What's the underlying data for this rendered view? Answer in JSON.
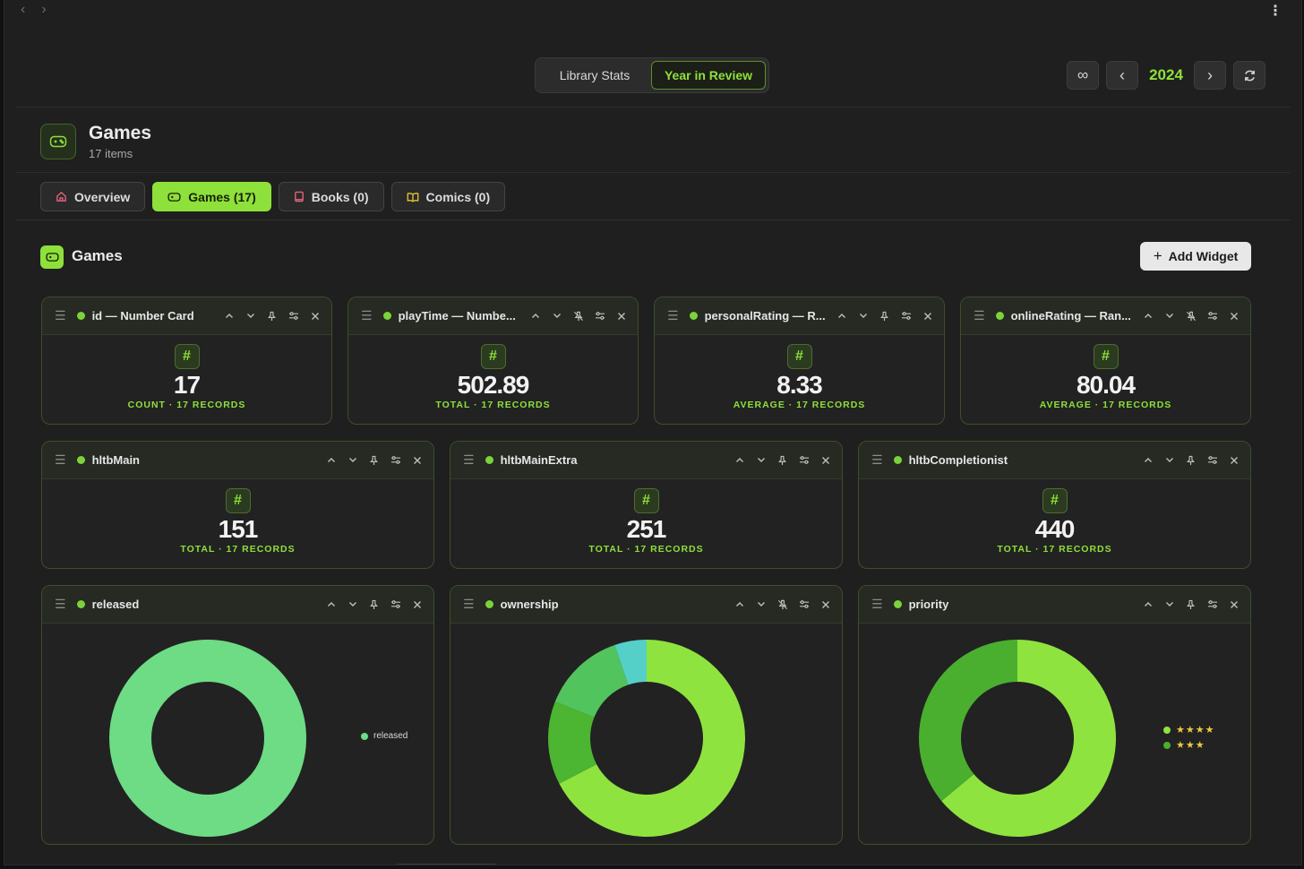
{
  "topbar": {
    "back": "‹",
    "forward": "›",
    "menu": "⋮"
  },
  "switcher": {
    "tabs": [
      {
        "label": "Library Stats",
        "active": false
      },
      {
        "label": "Year in Review",
        "active": true
      }
    ]
  },
  "yearbar": {
    "all_label": "∞",
    "prev": "‹",
    "year": "2024",
    "next": "›"
  },
  "header": {
    "title": "Games",
    "subtitle": "17 items"
  },
  "tabs": [
    {
      "label": "Overview",
      "icon": "home-icon",
      "active": false
    },
    {
      "label": "Games (17)",
      "icon": "gamepad-icon",
      "active": true
    },
    {
      "label": "Books (0)",
      "icon": "book-icon",
      "active": false
    },
    {
      "label": "Comics (0)",
      "icon": "open-book-icon",
      "active": false
    }
  ],
  "section": {
    "title": "Games",
    "add_widget": "Add Widget"
  },
  "number_widgets": [
    {
      "title": "id — Number Card",
      "value": "17",
      "sub": "COUNT · 17 RECORDS",
      "pinned": true
    },
    {
      "title": "playTime — Numbe...",
      "value": "502.89",
      "sub": "TOTAL · 17 RECORDS",
      "pinned": false
    },
    {
      "title": "personalRating — R...",
      "value": "8.33",
      "sub": "AVERAGE · 17 RECORDS",
      "pinned": true
    },
    {
      "title": "onlineRating — Ran...",
      "value": "80.04",
      "sub": "AVERAGE · 17 RECORDS",
      "pinned": false
    },
    {
      "title": "hltbMain",
      "value": "151",
      "sub": "TOTAL · 17 RECORDS",
      "pinned": true
    },
    {
      "title": "hltbMainExtra",
      "value": "251",
      "sub": "TOTAL · 17 RECORDS",
      "pinned": true
    },
    {
      "title": "hltbCompletionist",
      "value": "440",
      "sub": "TOTAL · 17 RECORDS",
      "pinned": true
    }
  ],
  "chart_widgets": [
    {
      "title": "released",
      "pinned": true
    },
    {
      "title": "ownership",
      "pinned": false
    },
    {
      "title": "priority",
      "pinned": true
    }
  ],
  "chart_data": [
    {
      "type": "pie",
      "categories": [
        "released"
      ],
      "values": [
        100
      ],
      "colors": [
        "#6ddc85"
      ],
      "legend": "right"
    },
    {
      "type": "pie",
      "categories": [
        "",
        "",
        "",
        ""
      ],
      "values": [
        64,
        13,
        13,
        5
      ],
      "colors": [
        "#8fe33f",
        "#4cb531",
        "#52c45e",
        "#55d0c8"
      ]
    },
    {
      "type": "pie",
      "categories": [
        "★★★★",
        "★★★"
      ],
      "values": [
        64,
        36
      ],
      "colors": [
        "#8fe33f",
        "#4aaf2f"
      ],
      "legend": "right"
    }
  ]
}
